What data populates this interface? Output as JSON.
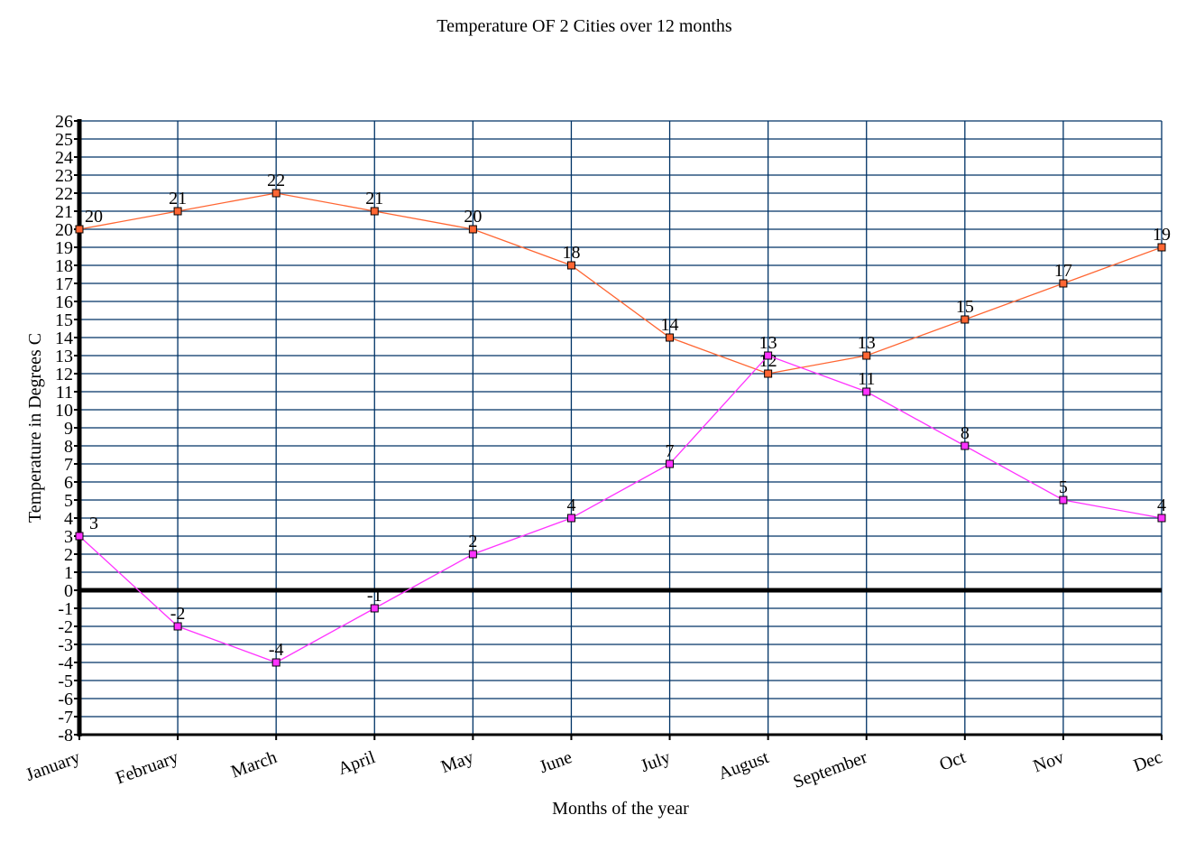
{
  "chart_data": {
    "type": "line",
    "title": "Temperature OF 2 Cities over 12 months",
    "xlabel": "Months of the year",
    "ylabel": "Temperature in Degrees C",
    "categories": [
      "January",
      "February",
      "March",
      "April",
      "May",
      "June",
      "July",
      "August",
      "September",
      "Oct",
      "Nov",
      "Dec"
    ],
    "ylim": [
      -8,
      26
    ],
    "ytick_step": 1,
    "grid": true,
    "legend": "none",
    "series": [
      {
        "values": [
          20,
          21,
          22,
          21,
          20,
          18,
          14,
          12,
          13,
          15,
          17,
          19
        ],
        "color": "#ff6633"
      },
      {
        "values": [
          3,
          -2,
          -4,
          -1,
          2,
          4,
          7,
          13,
          11,
          8,
          5,
          4
        ],
        "color": "#ff33ff"
      }
    ],
    "grid_color": "#003366"
  }
}
